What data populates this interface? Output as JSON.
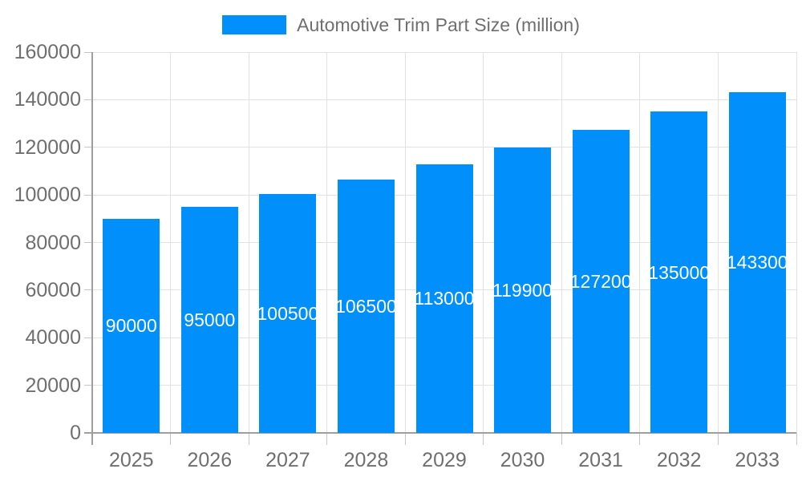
{
  "legend": {
    "label": "Automotive Trim Part Size (million)"
  },
  "colors": {
    "bar": "#008FFB",
    "grid": "#e2e2e2",
    "axis": "#9e9e9e",
    "tick_mark": "#c6c6c6",
    "axis_text": "#6f6f6f",
    "bar_label_text": "#ffffff",
    "background": "#ffffff"
  },
  "chart_data": {
    "type": "bar",
    "title": "Automotive Trim Part Size (million)",
    "categories": [
      "2025",
      "2026",
      "2027",
      "2028",
      "2029",
      "2030",
      "2031",
      "2032",
      "2033"
    ],
    "values": [
      90000,
      95000,
      100500,
      106500,
      113000,
      119900,
      127200,
      135000,
      143300
    ],
    "series": [
      {
        "name": "Automotive Trim Part Size (million)",
        "values": [
          90000,
          95000,
          100500,
          106500,
          113000,
          119900,
          127200,
          135000,
          143300
        ]
      }
    ],
    "xlabel": "",
    "ylabel": "",
    "ylim": [
      0,
      160000
    ],
    "y_ticks": [
      0,
      20000,
      40000,
      60000,
      80000,
      100000,
      120000,
      140000,
      160000
    ],
    "grid": true,
    "legend_position": "top",
    "data_labels": "inside-center"
  }
}
